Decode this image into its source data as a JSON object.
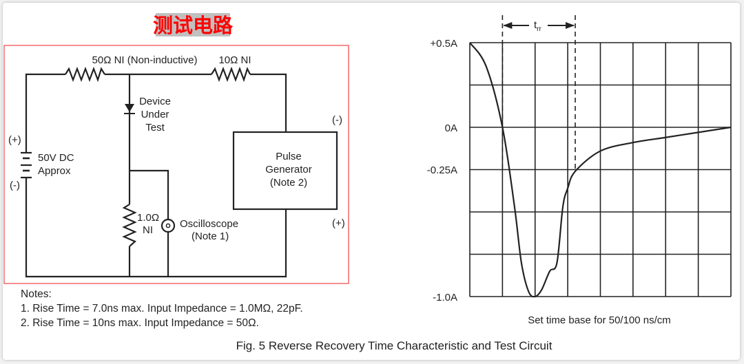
{
  "title": "测试电路",
  "colors": {
    "title_text": "#ff0000",
    "title_bg": "#c0c0c0",
    "frame": "#f05050",
    "ink": "#222222"
  },
  "circuit": {
    "r50_label": "50Ω NI (Non-inductive)",
    "r10_label": "10Ω NI",
    "dut_label": [
      "Device",
      "Under",
      "Test"
    ],
    "battery_label": [
      "50V DC",
      "Approx"
    ],
    "battery_plus": "(+)",
    "battery_minus": "(-)",
    "pulse_gen_label": [
      "Pulse",
      "Generator",
      "(Note 2)"
    ],
    "pulse_minus": "(-)",
    "pulse_plus": "(+)",
    "r1_label": [
      "1.0Ω",
      "NI"
    ],
    "scope_label": [
      "Oscilloscope",
      "(Note 1)"
    ]
  },
  "notes": {
    "heading": "Notes:",
    "items": [
      "1. Rise Time = 7.0ns max. Input Impedance = 1.0MΩ, 22pF.",
      "2. Rise Time = 10ns max. Input Impedance = 50Ω."
    ]
  },
  "waveform": {
    "y_ticks": [
      "+0.5A",
      "0A",
      "-0.25A",
      "-1.0A"
    ],
    "trr_label": "t",
    "trr_sub": "rr",
    "xlabel": "Set time base for 50/100 ns/cm",
    "ylim": [
      -1.0,
      0.5
    ],
    "xdivs": 8,
    "ydivs": 6,
    "trr_marks": [
      1,
      3.23
    ],
    "curve": [
      [
        0,
        0.5
      ],
      [
        0.5,
        0.36
      ],
      [
        1,
        0
      ],
      [
        1.37,
        -0.47
      ],
      [
        1.58,
        -0.8
      ],
      [
        1.8,
        -0.97
      ],
      [
        2,
        -1.0
      ],
      [
        2.2,
        -0.96
      ],
      [
        2.45,
        -0.85
      ],
      [
        2.67,
        -0.8
      ],
      [
        2.85,
        -0.47
      ],
      [
        3,
        -0.36
      ],
      [
        3.23,
        -0.26
      ],
      [
        4,
        -0.14
      ],
      [
        5,
        -0.09
      ],
      [
        6,
        -0.06
      ],
      [
        7,
        -0.03
      ],
      [
        8,
        0
      ]
    ]
  },
  "caption": "Fig. 5  Reverse Recovery Time Characteristic and Test Circuit"
}
